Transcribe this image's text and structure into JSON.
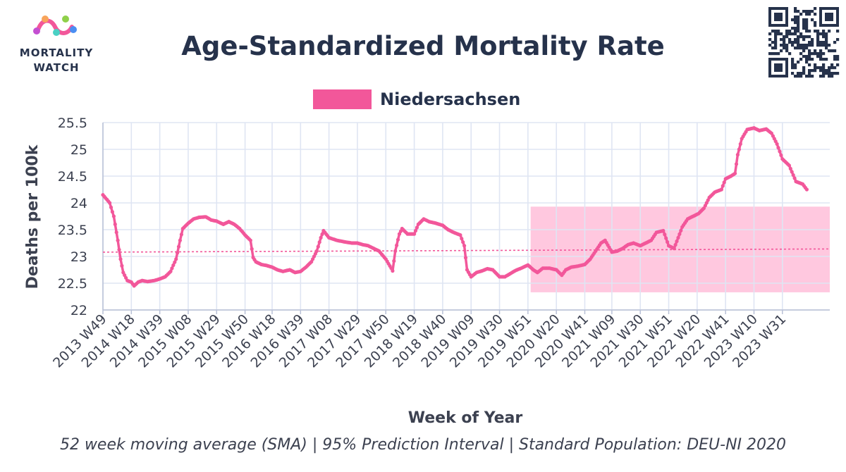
{
  "brand": {
    "logo_line1": "MORTALITY",
    "logo_line2": "WATCH"
  },
  "caption": "52 week moving average (SMA) | 95% Prediction Interval | Standard Population: DEU-NI 2020",
  "colors": {
    "series": "#f2579a",
    "band": "#ffc2dc",
    "title": "#26324b",
    "grid": "#dfe5f3",
    "axis_text": "#3c4150"
  },
  "chart_data": {
    "type": "line",
    "title": "Age-Standardized Mortality Rate",
    "xlabel": "Week of Year",
    "ylabel": "Deaths per 100k",
    "ylim": [
      22,
      25.5
    ],
    "yticks": [
      22,
      22.5,
      23,
      23.5,
      24,
      24.5,
      25,
      25.5
    ],
    "ytick_labels": [
      "22",
      "22.5",
      "23",
      "23.5",
      "24",
      "24.5",
      "25",
      "25.5"
    ],
    "x_start": "2013 W49",
    "x_end": "2024 W14",
    "x_tick_labels": [
      "2013 W49",
      "2014 W18",
      "2014 W39",
      "2015 W08",
      "2015 W29",
      "2015 W50",
      "2016 W18",
      "2016 W39",
      "2017 W08",
      "2017 W29",
      "2017 W50",
      "2018 W19",
      "2018 W40",
      "2019 W09",
      "2019 W30",
      "2019 W51",
      "2020 W20",
      "2020 W41",
      "2021 W09",
      "2021 W30",
      "2021 W51",
      "2022 W20",
      "2022 W41",
      "2023 W10",
      "2023 W31"
    ],
    "grid": true,
    "legend_position": "top-center",
    "series": [
      {
        "name": "Niedersachsen",
        "points": [
          [
            "2013 W49",
            24.15
          ],
          [
            "2014 W02",
            24.0
          ],
          [
            "2014 W05",
            23.75
          ],
          [
            "2014 W08",
            23.3
          ],
          [
            "2014 W10",
            22.95
          ],
          [
            "2014 W12",
            22.7
          ],
          [
            "2014 W15",
            22.55
          ],
          [
            "2014 W18",
            22.52
          ],
          [
            "2014 W20",
            22.45
          ],
          [
            "2014 W23",
            22.52
          ],
          [
            "2014 W26",
            22.55
          ],
          [
            "2014 W30",
            22.53
          ],
          [
            "2014 W35",
            22.55
          ],
          [
            "2014 W39",
            22.58
          ],
          [
            "2014 W43",
            22.62
          ],
          [
            "2014 W47",
            22.72
          ],
          [
            "2014 W51",
            22.95
          ],
          [
            "2015 W02",
            23.3
          ],
          [
            "2015 W04",
            23.52
          ],
          [
            "2015 W08",
            23.62
          ],
          [
            "2015 W12",
            23.7
          ],
          [
            "2015 W16",
            23.73
          ],
          [
            "2015 W21",
            23.74
          ],
          [
            "2015 W25",
            23.68
          ],
          [
            "2015 W29",
            23.66
          ],
          [
            "2015 W34",
            23.6
          ],
          [
            "2015 W38",
            23.65
          ],
          [
            "2015 W42",
            23.6
          ],
          [
            "2015 W46",
            23.52
          ],
          [
            "2015 W50",
            23.4
          ],
          [
            "2016 W02",
            23.3
          ],
          [
            "2016 W04",
            22.98
          ],
          [
            "2016 W06",
            22.9
          ],
          [
            "2016 W10",
            22.85
          ],
          [
            "2016 W14",
            22.83
          ],
          [
            "2016 W18",
            22.8
          ],
          [
            "2016 W22",
            22.75
          ],
          [
            "2016 W26",
            22.72
          ],
          [
            "2016 W31",
            22.75
          ],
          [
            "2016 W35",
            22.7
          ],
          [
            "2016 W39",
            22.72
          ],
          [
            "2016 W43",
            22.8
          ],
          [
            "2016 W47",
            22.9
          ],
          [
            "2016 W51",
            23.1
          ],
          [
            "2017 W02",
            23.35
          ],
          [
            "2017 W04",
            23.48
          ],
          [
            "2017 W08",
            23.35
          ],
          [
            "2017 W14",
            23.3
          ],
          [
            "2017 W20",
            23.27
          ],
          [
            "2017 W25",
            23.25
          ],
          [
            "2017 W29",
            23.25
          ],
          [
            "2017 W33",
            23.22
          ],
          [
            "2017 W37",
            23.2
          ],
          [
            "2017 W41",
            23.15
          ],
          [
            "2017 W45",
            23.1
          ],
          [
            "2017 W50",
            22.95
          ],
          [
            "2018 W02",
            22.78
          ],
          [
            "2018 W03",
            22.73
          ],
          [
            "2018 W05",
            23.1
          ],
          [
            "2018 W08",
            23.42
          ],
          [
            "2018 W10",
            23.52
          ],
          [
            "2018 W14",
            23.42
          ],
          [
            "2018 W19",
            23.42
          ],
          [
            "2018 W22",
            23.6
          ],
          [
            "2018 W26",
            23.7
          ],
          [
            "2018 W30",
            23.65
          ],
          [
            "2018 W35",
            23.62
          ],
          [
            "2018 W40",
            23.58
          ],
          [
            "2018 W44",
            23.5
          ],
          [
            "2018 W48",
            23.45
          ],
          [
            "2019 W01",
            23.4
          ],
          [
            "2019 W04",
            23.2
          ],
          [
            "2019 W06",
            22.75
          ],
          [
            "2019 W09",
            22.62
          ],
          [
            "2019 W13",
            22.7
          ],
          [
            "2019 W17",
            22.73
          ],
          [
            "2019 W21",
            22.77
          ],
          [
            "2019 W25",
            22.75
          ],
          [
            "2019 W30",
            22.62
          ],
          [
            "2019 W34",
            22.62
          ],
          [
            "2019 W38",
            22.68
          ],
          [
            "2019 W42",
            22.74
          ],
          [
            "2019 W46",
            22.78
          ],
          [
            "2019 W51",
            22.84
          ],
          [
            "2020 W03",
            22.75
          ],
          [
            "2020 W06",
            22.7
          ],
          [
            "2020 W10",
            22.78
          ],
          [
            "2020 W15",
            22.78
          ],
          [
            "2020 W20",
            22.75
          ],
          [
            "2020 W24",
            22.65
          ],
          [
            "2020 W27",
            22.75
          ],
          [
            "2020 W31",
            22.8
          ],
          [
            "2020 W36",
            22.82
          ],
          [
            "2020 W41",
            22.85
          ],
          [
            "2020 W45",
            22.95
          ],
          [
            "2020 W49",
            23.1
          ],
          [
            "2021 W01",
            23.25
          ],
          [
            "2021 W04",
            23.3
          ],
          [
            "2021 W09",
            23.08
          ],
          [
            "2021 W13",
            23.1
          ],
          [
            "2021 W17",
            23.15
          ],
          [
            "2021 W21",
            23.22
          ],
          [
            "2021 W25",
            23.25
          ],
          [
            "2021 W30",
            23.2
          ],
          [
            "2021 W34",
            23.25
          ],
          [
            "2021 W38",
            23.3
          ],
          [
            "2021 W42",
            23.45
          ],
          [
            "2021 W47",
            23.48
          ],
          [
            "2021 W51",
            23.2
          ],
          [
            "2022 W03",
            23.15
          ],
          [
            "2022 W06",
            23.35
          ],
          [
            "2022 W09",
            23.55
          ],
          [
            "2022 W13",
            23.7
          ],
          [
            "2022 W17",
            23.75
          ],
          [
            "2022 W21",
            23.8
          ],
          [
            "2022 W25",
            23.9
          ],
          [
            "2022 W29",
            24.1
          ],
          [
            "2022 W33",
            24.2
          ],
          [
            "2022 W38",
            24.25
          ],
          [
            "2022 W41",
            24.45
          ],
          [
            "2022 W45",
            24.5
          ],
          [
            "2022 W48",
            24.55
          ],
          [
            "2022 W50",
            24.9
          ],
          [
            "2023 W01",
            25.2
          ],
          [
            "2023 W05",
            25.37
          ],
          [
            "2023 W10",
            25.4
          ],
          [
            "2023 W14",
            25.35
          ],
          [
            "2023 W19",
            25.38
          ],
          [
            "2023 W23",
            25.3
          ],
          [
            "2023 W27",
            25.1
          ],
          [
            "2023 W31",
            24.82
          ],
          [
            "2023 W36",
            24.7
          ],
          [
            "2023 W41",
            24.4
          ],
          [
            "2023 W46",
            24.35
          ],
          [
            "2023 W49",
            24.25
          ]
        ]
      }
    ],
    "baseline": {
      "points": [
        [
          "2013 W49",
          23.08
        ],
        [
          "2024 W14",
          23.14
        ]
      ]
    },
    "prediction_interval": {
      "x_start": "2020 W01",
      "x_end": "2024 W14",
      "lower": 22.33,
      "upper": 23.93
    }
  }
}
